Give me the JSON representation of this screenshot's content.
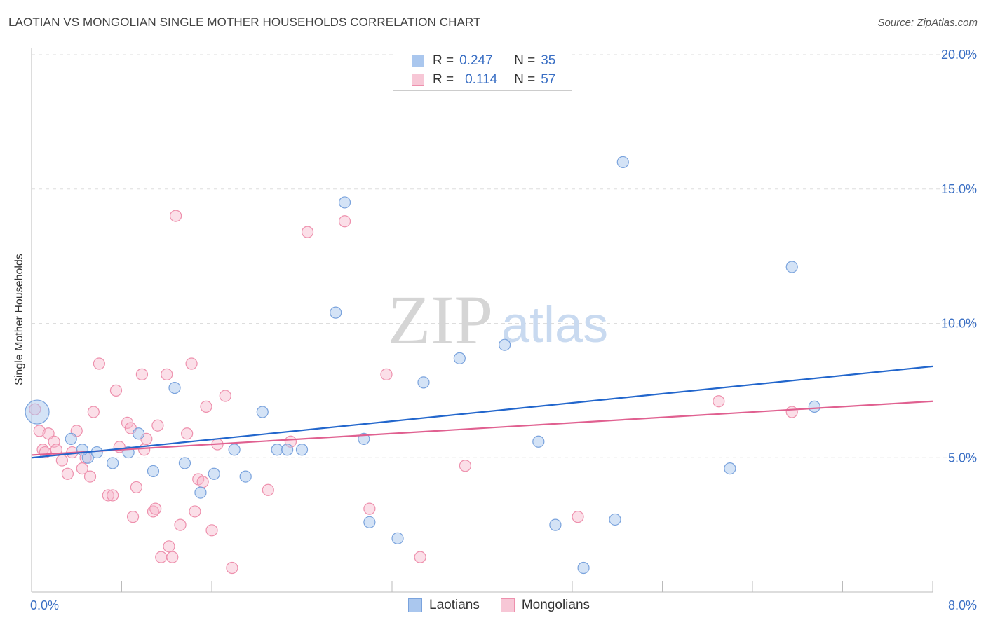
{
  "title": "LAOTIAN VS MONGOLIAN SINGLE MOTHER HOUSEHOLDS CORRELATION CHART",
  "source": "Source: ZipAtlas.com",
  "watermark": {
    "part1": "ZIP",
    "part2": "atlas"
  },
  "legend": {
    "rows": [
      {
        "r_label": "R =",
        "r_value": "0.247",
        "n_label": "N =",
        "n_value": "35"
      },
      {
        "r_label": "R =",
        "r_value": "0.114",
        "n_label": "N =",
        "n_value": "57"
      }
    ]
  },
  "bottom_legend": {
    "laotians": "Laotians",
    "mongolians": "Mongolians"
  },
  "colors": {
    "laotian_fill": "#aac7ee",
    "laotian_stroke": "#7aa3dd",
    "laotian_line": "#2266cc",
    "mongolian_fill": "#f7b8cb",
    "mongolian_stroke": "#ee90ad",
    "mongolian_line": "#e06090",
    "tick_text": "#3a6fc4",
    "grid": "#dddddd"
  },
  "chart_data": {
    "type": "scatter",
    "title": "LAOTIAN VS MONGOLIAN SINGLE MOTHER HOUSEHOLDS CORRELATION CHART",
    "xlabel": "",
    "ylabel": "Single Mother Households",
    "xlim": [
      0,
      8.0
    ],
    "ylim": [
      0,
      20.0
    ],
    "x_tick_labels": [
      "0.0%",
      "8.0%"
    ],
    "y_tick_labels": [
      "5.0%",
      "10.0%",
      "15.0%",
      "20.0%"
    ],
    "y_ticks": [
      5,
      10,
      15,
      20
    ],
    "grid": "horizontal dashed",
    "legend_position": "top-center",
    "series": [
      {
        "name": "Laotians",
        "r": 0.247,
        "n": 35,
        "trend": [
          [
            0,
            5.0
          ],
          [
            8.0,
            8.4
          ]
        ],
        "points": [
          [
            0.05,
            6.7,
            "large"
          ],
          [
            0.35,
            5.7
          ],
          [
            0.5,
            5.0
          ],
          [
            0.45,
            5.3
          ],
          [
            0.58,
            5.2
          ],
          [
            0.72,
            4.8
          ],
          [
            0.86,
            5.2
          ],
          [
            0.95,
            5.9
          ],
          [
            1.08,
            4.5
          ],
          [
            1.27,
            7.6
          ],
          [
            1.36,
            4.8
          ],
          [
            1.5,
            3.7
          ],
          [
            1.62,
            4.4
          ],
          [
            1.8,
            5.3
          ],
          [
            1.9,
            4.3
          ],
          [
            2.05,
            6.7
          ],
          [
            2.18,
            5.3
          ],
          [
            2.27,
            5.3
          ],
          [
            2.4,
            5.3
          ],
          [
            2.7,
            10.4
          ],
          [
            2.78,
            14.5
          ],
          [
            2.95,
            5.7
          ],
          [
            3.0,
            2.6
          ],
          [
            3.25,
            2.0
          ],
          [
            3.48,
            7.8
          ],
          [
            3.8,
            8.7
          ],
          [
            4.2,
            9.2
          ],
          [
            4.5,
            5.6
          ],
          [
            4.65,
            2.5
          ],
          [
            5.18,
            2.7
          ],
          [
            5.25,
            16.0
          ],
          [
            6.2,
            4.6
          ],
          [
            6.75,
            12.1
          ],
          [
            6.95,
            6.9
          ],
          [
            4.9,
            0.9
          ]
        ]
      },
      {
        "name": "Mongolians",
        "r": 0.114,
        "n": 57,
        "trend": [
          [
            0,
            5.1
          ],
          [
            8.0,
            7.1
          ]
        ],
        "points": [
          [
            0.03,
            6.8
          ],
          [
            0.07,
            6.0
          ],
          [
            0.1,
            5.3
          ],
          [
            0.15,
            5.9
          ],
          [
            0.2,
            5.6
          ],
          [
            0.22,
            5.3
          ],
          [
            0.27,
            4.9
          ],
          [
            0.32,
            4.4
          ],
          [
            0.36,
            5.2
          ],
          [
            0.4,
            6.0
          ],
          [
            0.45,
            4.6
          ],
          [
            0.48,
            5.0
          ],
          [
            0.52,
            4.3
          ],
          [
            0.55,
            6.7
          ],
          [
            0.6,
            8.5
          ],
          [
            0.68,
            3.6
          ],
          [
            0.72,
            3.6
          ],
          [
            0.75,
            7.5
          ],
          [
            0.78,
            5.4
          ],
          [
            0.85,
            6.3
          ],
          [
            0.88,
            6.1
          ],
          [
            0.9,
            2.8
          ],
          [
            0.93,
            3.9
          ],
          [
            0.98,
            8.1
          ],
          [
            1.0,
            5.3
          ],
          [
            1.02,
            5.7
          ],
          [
            1.08,
            3.0
          ],
          [
            1.1,
            3.1
          ],
          [
            1.12,
            6.2
          ],
          [
            1.15,
            1.3
          ],
          [
            1.2,
            8.1
          ],
          [
            1.22,
            1.7
          ],
          [
            1.25,
            1.3
          ],
          [
            1.28,
            14.0
          ],
          [
            1.32,
            2.5
          ],
          [
            1.38,
            5.9
          ],
          [
            1.42,
            8.5
          ],
          [
            1.45,
            3.0
          ],
          [
            1.48,
            4.2
          ],
          [
            1.52,
            4.1
          ],
          [
            1.55,
            6.9
          ],
          [
            1.6,
            2.3
          ],
          [
            1.65,
            5.5
          ],
          [
            1.72,
            7.3
          ],
          [
            1.78,
            0.9
          ],
          [
            2.1,
            3.8
          ],
          [
            2.3,
            5.6
          ],
          [
            2.45,
            13.4
          ],
          [
            2.78,
            13.8
          ],
          [
            3.0,
            3.1
          ],
          [
            3.15,
            8.1
          ],
          [
            3.45,
            1.3
          ],
          [
            3.85,
            4.7
          ],
          [
            4.85,
            2.8
          ],
          [
            6.1,
            7.1
          ],
          [
            6.75,
            6.7
          ],
          [
            0.12,
            5.2
          ]
        ]
      }
    ]
  }
}
